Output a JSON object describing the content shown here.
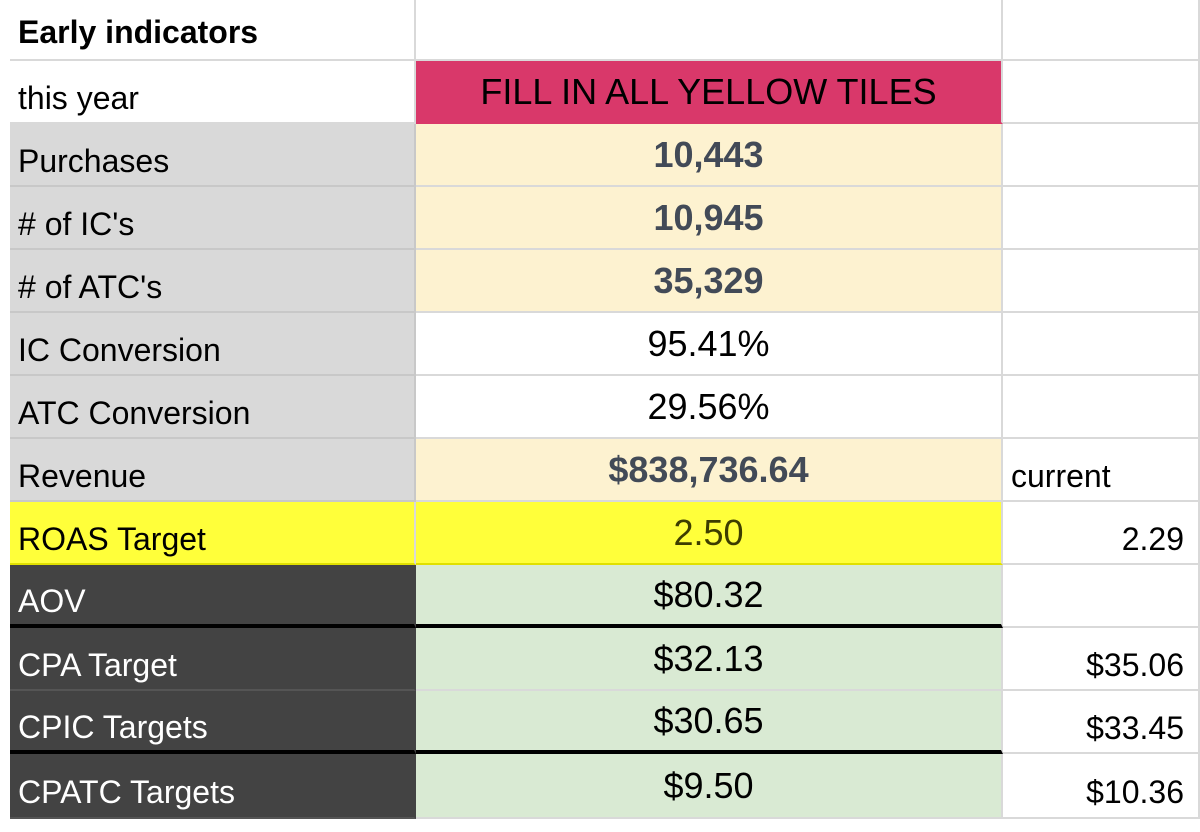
{
  "section_title": "Early indicators",
  "rows": [
    {
      "label": "this year",
      "value": "FILL IN ALL YELLOW TILES",
      "side": ""
    },
    {
      "label": "Purchases",
      "value": "10,443",
      "side": ""
    },
    {
      "label": "# of IC's",
      "value": "10,945",
      "side": ""
    },
    {
      "label": "# of ATC's",
      "value": "35,329",
      "side": ""
    },
    {
      "label": "IC Conversion",
      "value": "95.41%",
      "side": ""
    },
    {
      "label": "ATC Conversion",
      "value": "29.56%",
      "side": ""
    },
    {
      "label": "Revenue",
      "value": "$838,736.64",
      "side": "current"
    },
    {
      "label": "ROAS Target",
      "value": "2.50",
      "side": "2.29"
    },
    {
      "label": "AOV",
      "value": "$80.32",
      "side": ""
    },
    {
      "label": "CPA Target",
      "value": "$32.13",
      "side": "$35.06"
    },
    {
      "label": "CPIC Targets",
      "value": "$30.65",
      "side": "$33.45"
    },
    {
      "label": "CPATC Targets",
      "value": "$9.50",
      "side": "$10.36"
    }
  ],
  "colors": {
    "banner": "#d9386a",
    "input_tile": "#fdf2d0",
    "label_grey": "#d9d9d9",
    "label_dark": "#434343",
    "roas_yellow": "#ffff3a",
    "target_green": "#d9ead3"
  }
}
